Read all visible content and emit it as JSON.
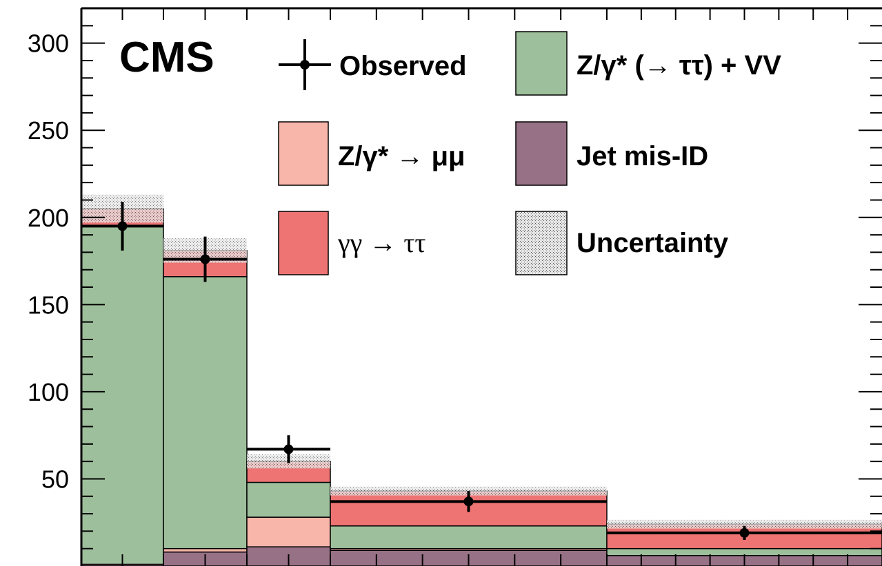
{
  "chart_data": {
    "type": "bar",
    "title": "CMS",
    "xlabel": "",
    "ylabel": "",
    "ylim": [
      0,
      320
    ],
    "yticks": [
      50,
      100,
      150,
      200,
      250,
      300
    ],
    "ytick_labels": [
      "50",
      "100",
      "150",
      "200",
      "250",
      "300"
    ],
    "bins": [
      {
        "lo": 0.0,
        "hi": 0.1
      },
      {
        "lo": 0.1,
        "hi": 0.2
      },
      {
        "lo": 0.2,
        "hi": 0.3
      },
      {
        "lo": 0.3,
        "hi": 0.6
      },
      {
        "lo": 0.6,
        "hi": 1.0
      }
    ],
    "stack": [
      {
        "key": "jet",
        "name": "Jet mis-ID",
        "color": "#977185",
        "values": [
          1,
          8,
          11,
          9,
          6
        ]
      },
      {
        "key": "mumu",
        "name": "Z/γ* → μμ",
        "color": "#f8b6aa",
        "values": [
          0,
          2,
          17,
          1,
          0
        ]
      },
      {
        "key": "dytautau",
        "name": "Z/γ* (→ ττ) + VV",
        "color": "#9ebf9b",
        "values": [
          194,
          156,
          20,
          13,
          4
        ]
      },
      {
        "key": "gg",
        "name": "γγ → ττ",
        "color": "#ee7474",
        "values": [
          10,
          15,
          12,
          20,
          14
        ]
      }
    ],
    "uncertainty": {
      "name": "Uncertainty",
      "values": [
        16,
        14,
        8,
        5,
        5
      ]
    },
    "observed": {
      "name": "Observed",
      "values": [
        195,
        176,
        67,
        37,
        19
      ],
      "errors": [
        14,
        13,
        8,
        6,
        4
      ]
    },
    "legend_placement": "top-right"
  }
}
